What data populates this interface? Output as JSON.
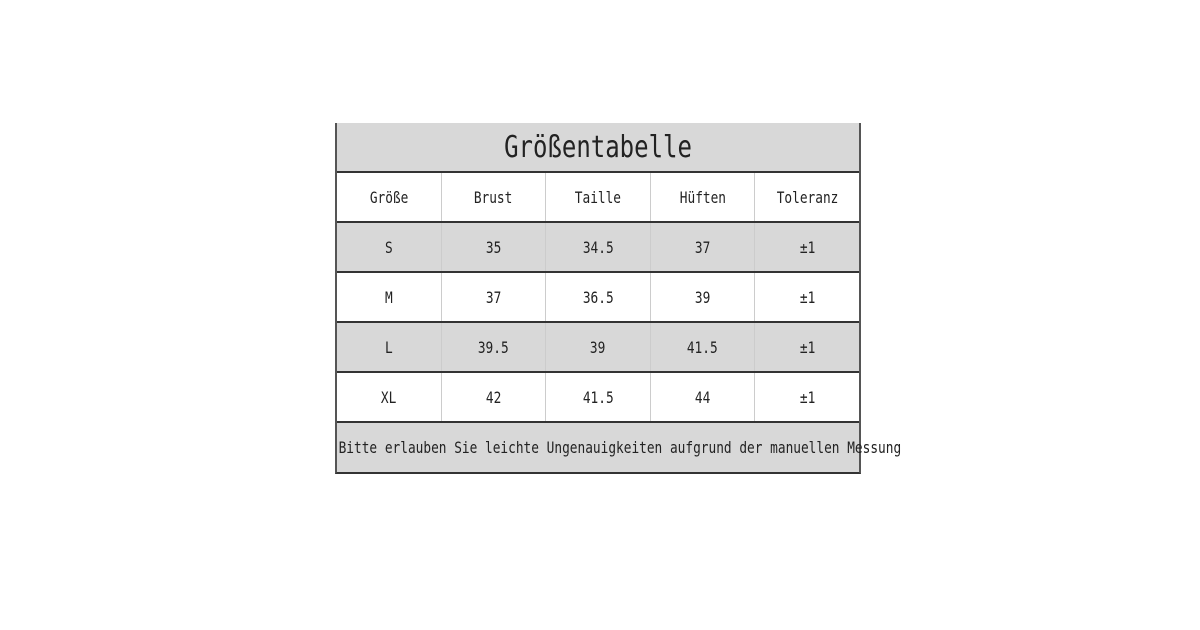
{
  "title": "Größentabelle",
  "headers": [
    "Größe",
    "Brust",
    "Taille",
    "Hüften",
    "Toleranz"
  ],
  "rows": [
    [
      "S",
      "35",
      "34.5",
      "37",
      "±1"
    ],
    [
      "M",
      "37",
      "36.5",
      "39",
      "±1"
    ],
    [
      "L",
      "39.5",
      "39",
      "41.5",
      "±1"
    ],
    [
      "XL",
      "42",
      "41.5",
      "44",
      "±1"
    ]
  ],
  "footer": "Bitte erlauben Sie leichte Ungenauigkeiten aufgrund der manuellen Messung",
  "colors": {
    "shaded_row": "#d8d8d8",
    "border": "#333333"
  }
}
